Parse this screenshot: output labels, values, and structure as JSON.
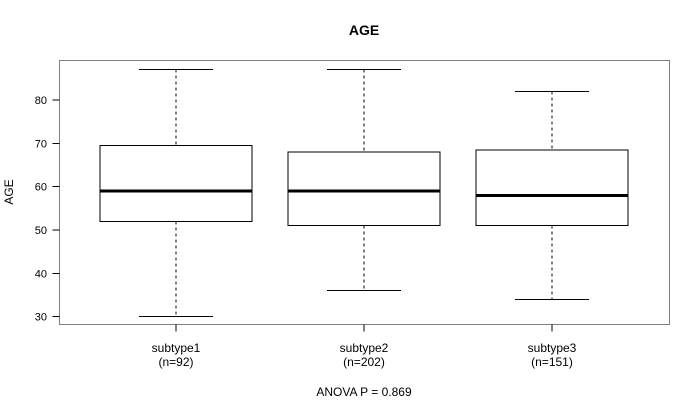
{
  "chart_data": {
    "type": "box",
    "title": "AGE",
    "ylabel": "AGE",
    "xlabel": "",
    "footnote": "ANOVA P = 0.869",
    "y_ticks": [
      30,
      40,
      50,
      60,
      70,
      80
    ],
    "ylim": [
      28,
      89
    ],
    "grid": "off",
    "legend": null,
    "colors": {
      "frame": "#808080",
      "line": "#000000",
      "median": "#000000",
      "box_fill": "#ffffff",
      "background": "#ffffff",
      "text": "#000000"
    },
    "groups": [
      {
        "label": "subtype1",
        "sublabel": "(n=92)",
        "n": 92,
        "min": 30,
        "q1": 52,
        "median": 59,
        "q3": 69.5,
        "max": 87
      },
      {
        "label": "subtype2",
        "sublabel": "(n=202)",
        "n": 202,
        "min": 36,
        "q1": 51,
        "median": 59,
        "q3": 68,
        "max": 87
      },
      {
        "label": "subtype3",
        "sublabel": "(n=151)",
        "n": 151,
        "min": 34,
        "q1": 51,
        "median": 58,
        "q3": 68.5,
        "max": 82
      }
    ]
  }
}
